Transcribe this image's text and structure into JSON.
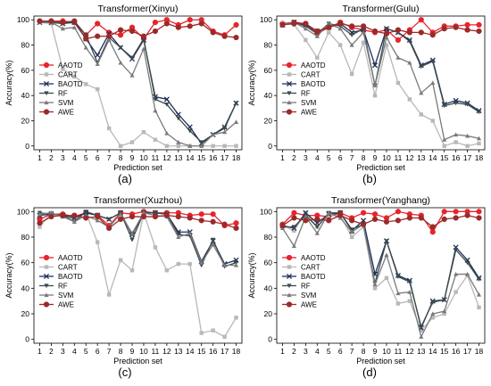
{
  "series_meta": [
    {
      "name": "AAOTD",
      "color": "#e8242b",
      "marker": "circle"
    },
    {
      "name": "CART",
      "color": "#b8b8b8",
      "marker": "square"
    },
    {
      "name": "BAOTD",
      "color": "#1f2f5c",
      "marker": "x"
    },
    {
      "name": "RF",
      "color": "#3b4a4a",
      "marker": "triangle-down"
    },
    {
      "name": "SVM",
      "color": "#7a7a7a",
      "marker": "triangle-up"
    },
    {
      "name": "AWE",
      "color": "#9b2a2a",
      "marker": "circle"
    }
  ],
  "chart_data": [
    {
      "type": "line",
      "panel_label": "(a)",
      "title": "Transformer(Xinyu)",
      "xlabel": "Prediction set",
      "ylabel": "Accuracy(%)",
      "x": [
        1,
        2,
        3,
        4,
        5,
        6,
        7,
        8,
        9,
        10,
        11,
        12,
        13,
        14,
        15,
        16,
        17,
        18
      ],
      "xlim": [
        0.5,
        18.5
      ],
      "ylim": [
        -3,
        103
      ],
      "yticks": [
        0,
        20,
        40,
        60,
        80,
        100
      ],
      "legend": "center-left",
      "series": [
        {
          "name": "AAOTD",
          "values": [
            99,
            99,
            99,
            98,
            88,
            97,
            90,
            88,
            94,
            85,
            98,
            100,
            96,
            100,
            100,
            91,
            88,
            96
          ]
        },
        {
          "name": "CART",
          "values": [
            98,
            97,
            61,
            55,
            49,
            45,
            14,
            0,
            3,
            11,
            5,
            0,
            0,
            0,
            0,
            0,
            0,
            0
          ]
        },
        {
          "name": "BAOTD",
          "values": [
            98,
            98,
            97,
            98,
            85,
            72,
            89,
            78,
            69,
            84,
            39,
            37,
            25,
            15,
            2,
            9,
            15,
            34
          ]
        },
        {
          "name": "RF",
          "values": [
            99,
            98,
            97,
            99,
            88,
            66,
            86,
            78,
            70,
            85,
            37,
            33,
            22,
            12,
            3,
            9,
            14,
            34
          ]
        },
        {
          "name": "SVM",
          "values": [
            98,
            98,
            93,
            94,
            78,
            65,
            84,
            66,
            56,
            77,
            28,
            10,
            3,
            0,
            0,
            9,
            11,
            19
          ]
        },
        {
          "name": "AWE",
          "values": [
            99,
            99,
            98,
            99,
            85,
            87,
            87,
            92,
            91,
            87,
            91,
            97,
            94,
            95,
            97,
            90,
            87,
            86
          ]
        }
      ]
    },
    {
      "type": "line",
      "panel_label": "(b)",
      "title": "Transformer(Gulu)",
      "xlabel": "Prediction set",
      "ylabel": "Accuracy(%)",
      "x": [
        1,
        2,
        3,
        4,
        5,
        6,
        7,
        8,
        9,
        10,
        11,
        12,
        13,
        14,
        15,
        16,
        17,
        18
      ],
      "xlim": [
        0.5,
        18.5
      ],
      "ylim": [
        -3,
        103
      ],
      "yticks": [
        0,
        20,
        40,
        60,
        80,
        100
      ],
      "legend": "center-left",
      "series": [
        {
          "name": "AAOTD",
          "values": [
            97,
            98,
            97,
            89,
            94,
            98,
            94,
            92,
            90,
            92,
            84,
            92,
            100,
            90,
            95,
            95,
            96,
            96
          ]
        },
        {
          "name": "CART",
          "values": [
            97,
            96,
            84,
            70,
            90,
            80,
            57,
            82,
            40,
            80,
            50,
            37,
            25,
            20,
            0,
            3,
            0,
            2
          ]
        },
        {
          "name": "BAOTD",
          "values": [
            96,
            98,
            96,
            91,
            94,
            97,
            90,
            92,
            64,
            93,
            90,
            84,
            64,
            68,
            33,
            36,
            34,
            28
          ]
        },
        {
          "name": "RF",
          "values": [
            96,
            98,
            95,
            89,
            97,
            95,
            88,
            93,
            48,
            93,
            90,
            83,
            63,
            67,
            32,
            34,
            33,
            27
          ]
        },
        {
          "name": "SVM",
          "values": [
            96,
            98,
            93,
            87,
            97,
            93,
            80,
            90,
            48,
            86,
            70,
            66,
            42,
            50,
            5,
            9,
            8,
            6
          ]
        },
        {
          "name": "AWE",
          "values": [
            96,
            97,
            97,
            91,
            94,
            97,
            95,
            95,
            91,
            89,
            92,
            90,
            90,
            88,
            93,
            94,
            92,
            91
          ]
        }
      ]
    },
    {
      "type": "line",
      "panel_label": "(c)",
      "title": "Transformer(Xuzhou)",
      "xlabel": "Prediction set",
      "ylabel": "Accuracy(%)",
      "x": [
        1,
        2,
        3,
        4,
        5,
        6,
        7,
        8,
        9,
        10,
        11,
        12,
        13,
        14,
        15,
        16,
        17,
        18
      ],
      "xlim": [
        0.5,
        18.5
      ],
      "ylim": [
        -3,
        103
      ],
      "yticks": [
        0,
        20,
        40,
        60,
        80,
        100
      ],
      "legend": "center-left",
      "series": [
        {
          "name": "AAOTD",
          "values": [
            94,
            98,
            98,
            96,
            99,
            97,
            89,
            99,
            98,
            100,
            99,
            99,
            99,
            97,
            98,
            98,
            89,
            91
          ]
        },
        {
          "name": "CART",
          "values": [
            88,
            99,
            96,
            94,
            99,
            76,
            35,
            62,
            54,
            99,
            72,
            54,
            59,
            59,
            5,
            7,
            2,
            17
          ]
        },
        {
          "name": "BAOTD",
          "values": [
            97,
            98,
            97,
            95,
            99,
            97,
            94,
            99,
            82,
            99,
            99,
            98,
            84,
            84,
            61,
            77,
            59,
            62
          ]
        },
        {
          "name": "RF",
          "values": [
            99,
            98,
            97,
            92,
            100,
            97,
            94,
            99,
            78,
            99,
            99,
            98,
            82,
            81,
            58,
            78,
            57,
            60
          ]
        },
        {
          "name": "SVM",
          "values": [
            98,
            99,
            96,
            92,
            97,
            93,
            88,
            98,
            83,
            99,
            97,
            96,
            80,
            83,
            60,
            74,
            58,
            58
          ]
        },
        {
          "name": "AWE",
          "values": [
            91,
            96,
            97,
            97,
            95,
            96,
            87,
            94,
            96,
            96,
            96,
            97,
            96,
            95,
            93,
            92,
            90,
            87
          ]
        }
      ]
    },
    {
      "type": "line",
      "panel_label": "(d)",
      "title": "Transformer(Yanghang)",
      "xlabel": "Prediction set",
      "ylabel": "Accuracy(%)",
      "x": [
        1,
        2,
        3,
        4,
        5,
        6,
        7,
        8,
        9,
        10,
        11,
        12,
        13,
        14,
        15,
        16,
        17,
        18
      ],
      "xlim": [
        0.5,
        18.5
      ],
      "ylim": [
        -3,
        103
      ],
      "yticks": [
        0,
        20,
        40,
        60,
        80,
        100
      ],
      "legend": "center-left",
      "series": [
        {
          "name": "AAOTD",
          "values": [
            90,
            99,
            97,
            97,
            96,
            99,
            95,
            99,
            98,
            95,
            100,
            98,
            97,
            84,
            100,
            100,
            100,
            100
          ]
        },
        {
          "name": "CART",
          "values": [
            89,
            85,
            99,
            88,
            97,
            97,
            80,
            88,
            40,
            48,
            28,
            30,
            7,
            17,
            20,
            37,
            50,
            25
          ]
        },
        {
          "name": "BAOTD",
          "values": [
            89,
            87,
            99,
            91,
            98,
            99,
            85,
            93,
            51,
            77,
            50,
            46,
            9,
            30,
            31,
            72,
            62,
            48
          ]
        },
        {
          "name": "RF",
          "values": [
            88,
            88,
            97,
            88,
            99,
            99,
            86,
            90,
            44,
            77,
            49,
            45,
            10,
            29,
            31,
            70,
            60,
            47
          ]
        },
        {
          "name": "SVM",
          "values": [
            87,
            73,
            96,
            83,
            99,
            95,
            84,
            90,
            43,
            66,
            36,
            37,
            2,
            20,
            22,
            51,
            51,
            35
          ]
        },
        {
          "name": "AWE",
          "values": [
            89,
            95,
            93,
            94,
            93,
            97,
            93,
            90,
            94,
            92,
            93,
            95,
            95,
            88,
            94,
            95,
            97,
            95
          ]
        }
      ]
    }
  ]
}
